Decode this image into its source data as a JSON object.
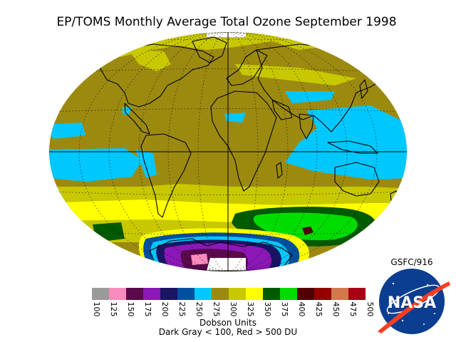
{
  "title": "EP/TOMS Monthly Average Total Ozone September 1998",
  "credit": "GSFC/916",
  "legend": {
    "unit": "Dobson Units",
    "note": "Dark Gray < 100, Red > 500 DU",
    "bins": [
      {
        "value": "100",
        "color": "#9a9a9a"
      },
      {
        "value": "125",
        "color": "#f78cbd"
      },
      {
        "value": "150",
        "color": "#5a0a4a"
      },
      {
        "value": "175",
        "color": "#8c18b8"
      },
      {
        "value": "200",
        "color": "#1a1464"
      },
      {
        "value": "225",
        "color": "#0050a0"
      },
      {
        "value": "250",
        "color": "#00c8ff"
      },
      {
        "value": "275",
        "color": "#9c8a10"
      },
      {
        "value": "300",
        "color": "#c8c800"
      },
      {
        "value": "325",
        "color": "#ffff00"
      },
      {
        "value": "350",
        "color": "#005a00"
      },
      {
        "value": "375",
        "color": "#00dc00"
      },
      {
        "value": "400",
        "color": "#500000"
      },
      {
        "value": "425",
        "color": "#960000"
      },
      {
        "value": "450",
        "color": "#d2784a"
      },
      {
        "value": "475",
        "color": "#aa0014"
      },
      {
        "value": "500",
        "color": ""
      }
    ]
  },
  "logo": {
    "text": "NASA",
    "colors": {
      "blue": "#0b3d91",
      "red": "#fc3d21"
    }
  }
}
